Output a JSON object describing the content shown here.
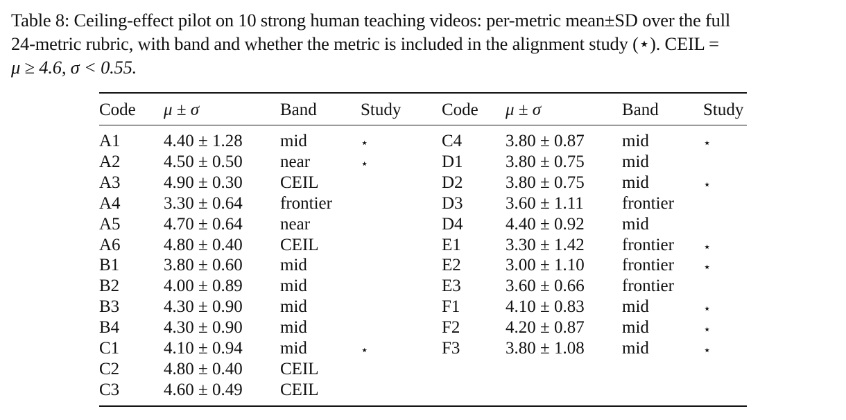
{
  "caption": {
    "line1": "Table 8: Ceiling-effect pilot on 10 strong human teaching videos: per-metric mean±SD over the full",
    "line2": "24-metric rubric, with band and whether the metric is included in the alignment study (⋆). CEIL =",
    "line3": "μ ≥ 4.6, σ < 0.55."
  },
  "table": {
    "headers": [
      "Code",
      "μ ± σ",
      "Band",
      "Study",
      "Code",
      "μ ± σ",
      "Band",
      "Study"
    ],
    "left_rows": [
      {
        "code": "A1",
        "mu": "4.40 ± 1.28",
        "band": "mid",
        "study": "⋆"
      },
      {
        "code": "A2",
        "mu": "4.50 ± 0.50",
        "band": "near",
        "study": "⋆"
      },
      {
        "code": "A3",
        "mu": "4.90 ± 0.30",
        "band": "CEIL",
        "study": ""
      },
      {
        "code": "A4",
        "mu": "3.30 ± 0.64",
        "band": "frontier",
        "study": ""
      },
      {
        "code": "A5",
        "mu": "4.70 ± 0.64",
        "band": "near",
        "study": ""
      },
      {
        "code": "A6",
        "mu": "4.80 ± 0.40",
        "band": "CEIL",
        "study": ""
      },
      {
        "code": "B1",
        "mu": "3.80 ± 0.60",
        "band": "mid",
        "study": ""
      },
      {
        "code": "B2",
        "mu": "4.00 ± 0.89",
        "band": "mid",
        "study": ""
      },
      {
        "code": "B3",
        "mu": "4.30 ± 0.90",
        "band": "mid",
        "study": ""
      },
      {
        "code": "B4",
        "mu": "4.30 ± 0.90",
        "band": "mid",
        "study": ""
      },
      {
        "code": "C1",
        "mu": "4.10 ± 0.94",
        "band": "mid",
        "study": "⋆"
      },
      {
        "code": "C2",
        "mu": "4.80 ± 0.40",
        "band": "CEIL",
        "study": ""
      },
      {
        "code": "C3",
        "mu": "4.60 ± 0.49",
        "band": "CEIL",
        "study": ""
      }
    ],
    "right_rows": [
      {
        "code": "C4",
        "mu": "3.80 ± 0.87",
        "band": "mid",
        "study": "⋆"
      },
      {
        "code": "D1",
        "mu": "3.80 ± 0.75",
        "band": "mid",
        "study": ""
      },
      {
        "code": "D2",
        "mu": "3.80 ± 0.75",
        "band": "mid",
        "study": "⋆"
      },
      {
        "code": "D3",
        "mu": "3.60 ± 1.11",
        "band": "frontier",
        "study": ""
      },
      {
        "code": "D4",
        "mu": "4.40 ± 0.92",
        "band": "mid",
        "study": ""
      },
      {
        "code": "E1",
        "mu": "3.30 ± 1.42",
        "band": "frontier",
        "study": "⋆"
      },
      {
        "code": "E2",
        "mu": "3.00 ± 1.10",
        "band": "frontier",
        "study": "⋆"
      },
      {
        "code": "E3",
        "mu": "3.60 ± 0.66",
        "band": "frontier",
        "study": ""
      },
      {
        "code": "F1",
        "mu": "4.10 ± 0.83",
        "band": "mid",
        "study": "⋆"
      },
      {
        "code": "F2",
        "mu": "4.20 ± 0.87",
        "band": "mid",
        "study": "⋆"
      },
      {
        "code": "F3",
        "mu": "3.80 ± 1.08",
        "band": "mid",
        "study": "⋆"
      }
    ]
  }
}
